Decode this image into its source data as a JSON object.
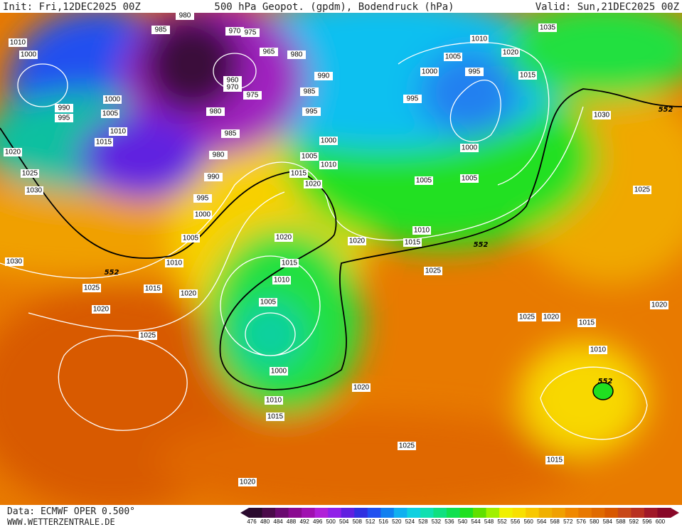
{
  "header": {
    "init": "Init: Fri,12DEC2025 00Z",
    "title": "500 hPa Geopot. (gpdm), Bodendruck (hPa)",
    "valid": "Valid: Sun,21DEC2025 00Z"
  },
  "footer": {
    "data": "Data: ECMWF OPER 0.500°",
    "site": "WWW.WETTERZENTRALE.DE"
  },
  "colorbar": {
    "levels": [
      476,
      480,
      484,
      488,
      492,
      496,
      500,
      504,
      508,
      512,
      516,
      520,
      524,
      528,
      532,
      536,
      540,
      544,
      548,
      552,
      556,
      560,
      564,
      568,
      572,
      576,
      580,
      584,
      588,
      592,
      596,
      600
    ],
    "colors": [
      "#2a0a2e",
      "#4a0a4a",
      "#6a0a70",
      "#8a0a90",
      "#a010b0",
      "#b020d8",
      "#9020e8",
      "#6020e0",
      "#3030e0",
      "#2050f0",
      "#1080f0",
      "#10b0f0",
      "#10d0e0",
      "#10e0b0",
      "#10e080",
      "#10e050",
      "#20e020",
      "#60e000",
      "#a0f000",
      "#f0f000",
      "#f8e000",
      "#f8c800",
      "#f0b000",
      "#f0a000",
      "#f08800",
      "#e87800",
      "#e06a00",
      "#d85800",
      "#c84818",
      "#b83020",
      "#a01828",
      "#880828"
    ]
  },
  "isobar_labels": [
    "1010",
    "1000",
    "990",
    "995",
    "1000",
    "1005",
    "1010",
    "1015",
    "1020",
    "1025",
    "1030",
    "985",
    "980",
    "970",
    "975",
    "965",
    "980",
    "960",
    "970",
    "975",
    "980",
    "985",
    "980",
    "990",
    "995",
    "1000",
    "1005",
    "1010",
    "1015",
    "1020",
    "1025",
    "1030",
    "1020",
    "1025",
    "1020",
    "990",
    "985",
    "995",
    "1000",
    "1005",
    "1010",
    "1015",
    "1020",
    "1020",
    "1015",
    "1010",
    "1005",
    "1000",
    "1010",
    "1015",
    "1020",
    "1010",
    "1015",
    "1025",
    "1020",
    "1025",
    "995",
    "1000",
    "1005",
    "995",
    "1010",
    "1020",
    "1015",
    "1000",
    "1005",
    "1005",
    "1035",
    "1030",
    "1025",
    "1025",
    "1020",
    "1015",
    "1010",
    "1020",
    "1015"
  ],
  "contour_labels_552": [
    "552",
    "552",
    "552",
    "552"
  ]
}
